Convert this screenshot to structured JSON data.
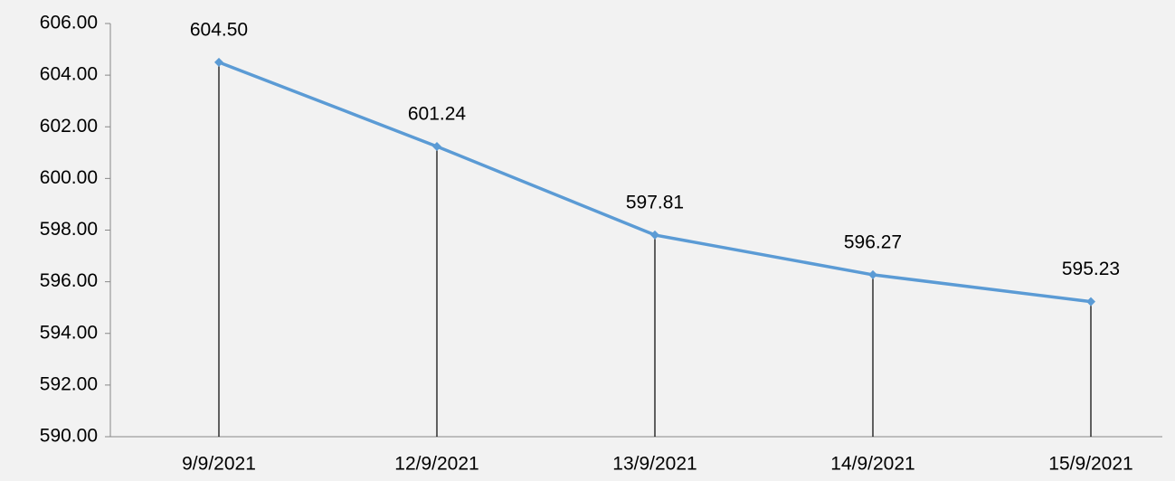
{
  "chart_data": {
    "type": "line",
    "categories": [
      "9/9/2021",
      "12/9/2021",
      "13/9/2021",
      "14/9/2021",
      "15/9/2021"
    ],
    "series": [
      {
        "color": "#5b9bd5",
        "values": [
          604.5,
          601.24,
          597.81,
          596.27,
          595.23
        ],
        "value_labels": [
          "604.50",
          "601.24",
          "597.81",
          "596.27",
          "595.23"
        ]
      }
    ],
    "ylim": [
      590,
      606
    ],
    "yticks": [
      {
        "value": 590,
        "label": "590.00"
      },
      {
        "value": 592,
        "label": "592.00"
      },
      {
        "value": 594,
        "label": "594.00"
      },
      {
        "value": 596,
        "label": "596.00"
      },
      {
        "value": 598,
        "label": "598.00"
      },
      {
        "value": 600,
        "label": "600.00"
      },
      {
        "value": 602,
        "label": "602.00"
      },
      {
        "value": 604,
        "label": "604.00"
      },
      {
        "value": 606,
        "label": "606.00"
      }
    ],
    "drop_lines": true
  }
}
